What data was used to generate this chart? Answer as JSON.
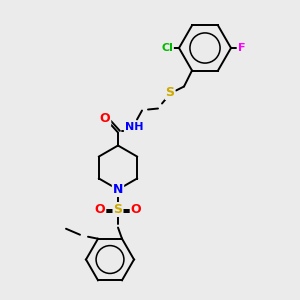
{
  "background_color": "#ebebeb",
  "atom_colors": {
    "C": "#000000",
    "N": "#0000ff",
    "O": "#ff0000",
    "S": "#ccaa00",
    "Cl": "#00bb00",
    "F": "#ff00ff",
    "H": "#000000"
  },
  "bond_color": "#000000",
  "bond_width": 1.4,
  "figsize": [
    3.0,
    3.0
  ],
  "dpi": 100
}
